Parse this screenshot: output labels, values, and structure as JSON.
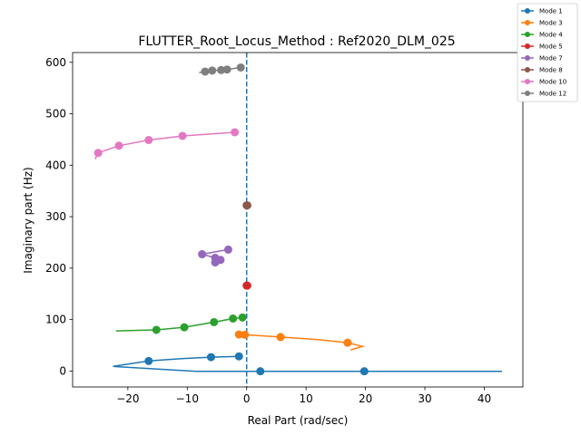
{
  "chart_data": {
    "type": "line",
    "title": "FLUTTER_Root_Locus_Method : Ref2020_DLM_025",
    "xlabel": "Real Part (rad/sec)",
    "ylabel": "Imaginary part (Hz)",
    "xlim": [
      -29.3,
      46.5
    ],
    "ylim": [
      -31,
      619
    ],
    "xticks": [
      -20,
      -10,
      0,
      10,
      20,
      30,
      40
    ],
    "yticks": [
      0,
      100,
      200,
      300,
      400,
      500,
      600
    ],
    "grid": false,
    "legend_position": "top-right (outside axes)",
    "reference_line": {
      "x": 0,
      "style": "dashed",
      "color": "#1f77b4"
    },
    "series": [
      {
        "name": "Mode 1",
        "color": "#1f77b4",
        "path": [
          [
            -1.3,
            28.5
          ],
          [
            -6,
            27
          ],
          [
            -11,
            24
          ],
          [
            -16.5,
            19.5
          ],
          [
            -22.5,
            9
          ],
          [
            -8.5,
            -0.5
          ],
          [
            2.3,
            -0.5
          ],
          [
            19.8,
            -0.5
          ],
          [
            43,
            -0.5
          ]
        ],
        "markers": [
          [
            -1.3,
            28.5
          ],
          [
            -6,
            27
          ],
          [
            -16.5,
            19.5
          ],
          [
            2.3,
            -0.5
          ],
          [
            19.8,
            -0.5
          ]
        ]
      },
      {
        "name": "Mode 3",
        "color": "#ff7f0e",
        "path": [
          [
            -1.3,
            71
          ],
          [
            -0.3,
            70.5
          ],
          [
            5.7,
            66
          ],
          [
            12,
            61
          ],
          [
            17,
            55
          ],
          [
            19.5,
            48
          ],
          [
            17.5,
            41
          ]
        ],
        "markers": [
          [
            -1.3,
            71
          ],
          [
            -0.3,
            70.5
          ],
          [
            5.7,
            66
          ],
          [
            17,
            55
          ]
        ]
      },
      {
        "name": "Mode 4",
        "color": "#2ca02c",
        "path": [
          [
            -22,
            78
          ],
          [
            -15.2,
            80
          ],
          [
            -10.5,
            85
          ],
          [
            -5.5,
            95
          ],
          [
            -2.3,
            102
          ],
          [
            -0.7,
            104
          ]
        ],
        "markers": [
          [
            -15.2,
            80
          ],
          [
            -10.5,
            85
          ],
          [
            -5.5,
            95
          ],
          [
            -2.3,
            102
          ],
          [
            -0.7,
            104
          ]
        ]
      },
      {
        "name": "Mode 5",
        "color": "#d62728",
        "path": [
          [
            0,
            166
          ],
          [
            0.1,
            166
          ]
        ],
        "markers": [
          [
            0,
            166
          ],
          [
            0.1,
            166
          ]
        ]
      },
      {
        "name": "Mode 7",
        "color": "#9467bd",
        "path": [
          [
            -3.1,
            236
          ],
          [
            -7.5,
            227
          ],
          [
            -5.3,
            220
          ],
          [
            -4.4,
            216
          ],
          [
            -5.3,
            211
          ]
        ],
        "markers": [
          [
            -3.1,
            236
          ],
          [
            -7.5,
            227
          ],
          [
            -5.3,
            220
          ],
          [
            -4.4,
            216
          ],
          [
            -5.3,
            211
          ]
        ]
      },
      {
        "name": "Mode 8",
        "color": "#8c564b",
        "path": [
          [
            0,
            322
          ],
          [
            0.1,
            322
          ]
        ],
        "markers": [
          [
            0,
            322
          ],
          [
            0.1,
            322
          ]
        ]
      },
      {
        "name": "Mode 10",
        "color": "#e377c2",
        "path": [
          [
            -25.5,
            412
          ],
          [
            -25,
            424
          ],
          [
            -21.5,
            438
          ],
          [
            -16.5,
            449
          ],
          [
            -10.8,
            457
          ],
          [
            -2,
            464
          ]
        ],
        "markers": [
          [
            -25,
            424
          ],
          [
            -21.5,
            438
          ],
          [
            -16.5,
            449
          ],
          [
            -10.8,
            457
          ],
          [
            -2,
            464
          ]
        ]
      },
      {
        "name": "Mode 12",
        "color": "#7f7f7f",
        "path": [
          [
            -8,
            580
          ],
          [
            -7,
            582
          ],
          [
            -5.8,
            584
          ],
          [
            -4.3,
            585
          ],
          [
            -3.3,
            586
          ],
          [
            -1,
            590
          ]
        ],
        "markers": [
          [
            -7,
            582
          ],
          [
            -5.8,
            584
          ],
          [
            -4.3,
            585
          ],
          [
            -3.3,
            586
          ],
          [
            -1,
            590
          ]
        ]
      }
    ]
  }
}
